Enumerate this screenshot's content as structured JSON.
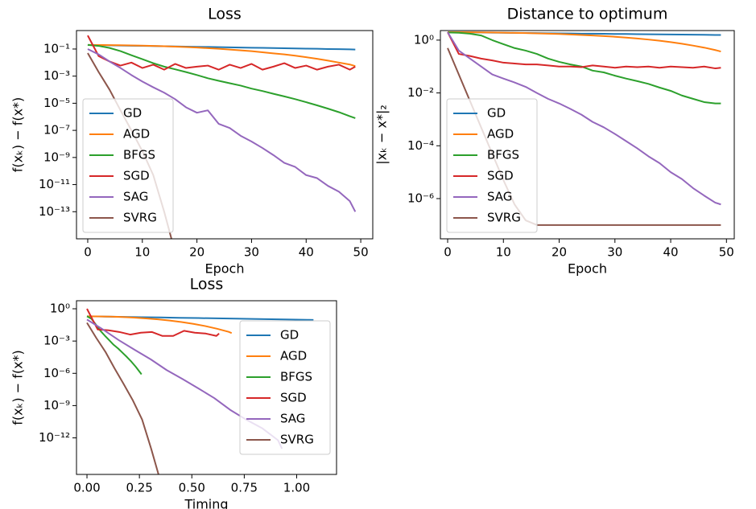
{
  "chart_data": [
    {
      "type": "line",
      "title": "Loss",
      "xlabel": "Epoch",
      "ylabel": "f(xₖ) − f(x*)",
      "ylog": true,
      "legend": "lower left",
      "xlim": [
        -2.06,
        52.2
      ],
      "xticks": [
        0,
        10,
        20,
        30,
        40,
        50
      ],
      "ylim": [
        2.3,
        1e-15
      ],
      "yticks": [
        {
          "value": 0.1,
          "label": "10⁻¹"
        },
        {
          "value": 0.001,
          "label": "10⁻³"
        },
        {
          "value": 1e-05,
          "label": "10⁻⁵"
        },
        {
          "value": 1e-07,
          "label": "10⁻⁷"
        },
        {
          "value": 1e-09,
          "label": "10⁻⁹"
        },
        {
          "value": 1e-11,
          "label": "10⁻¹¹"
        },
        {
          "value": 1e-13,
          "label": "10⁻¹³"
        }
      ],
      "x": [
        0,
        2,
        4,
        6,
        8,
        10,
        12,
        14,
        16,
        18,
        20,
        22,
        24,
        26,
        28,
        30,
        32,
        34,
        36,
        38,
        40,
        42,
        44,
        46,
        48,
        49
      ],
      "series": [
        {
          "name": "GD",
          "color": "#1f77b4",
          "values": [
            0.2,
            0.194,
            0.188,
            0.182,
            0.176,
            0.171,
            0.166,
            0.161,
            0.156,
            0.151,
            0.146,
            0.142,
            0.137,
            0.133,
            0.129,
            0.125,
            0.121,
            0.117,
            0.114,
            0.11,
            0.107,
            0.104,
            0.1,
            0.097,
            0.094,
            0.092
          ]
        },
        {
          "name": "AGD",
          "color": "#ff7f0e",
          "values": [
            0.2,
            0.198,
            0.195,
            0.19,
            0.185,
            0.178,
            0.17,
            0.16,
            0.15,
            0.14,
            0.128,
            0.116,
            0.104,
            0.092,
            0.08,
            0.069,
            0.058,
            0.048,
            0.04,
            0.032,
            0.025,
            0.019,
            0.014,
            0.01,
            0.0072,
            0.0055
          ]
        },
        {
          "name": "BFGS",
          "color": "#2ca02c",
          "values": [
            0.2,
            0.17,
            0.12,
            0.07,
            0.035,
            0.018,
            0.009,
            0.005,
            0.0032,
            0.002,
            0.0012,
            0.0007,
            0.00045,
            0.0003,
            0.0002,
            0.00012,
            8e-05,
            5e-05,
            3.2e-05,
            2e-05,
            1.2e-05,
            7e-06,
            4e-06,
            2.2e-06,
            1.1e-06,
            8e-07
          ]
        },
        {
          "name": "SGD",
          "color": "#d62728",
          "values": [
            1.0,
            0.03,
            0.012,
            0.006,
            0.01,
            0.004,
            0.007,
            0.003,
            0.008,
            0.004,
            0.005,
            0.006,
            0.003,
            0.007,
            0.004,
            0.008,
            0.003,
            0.005,
            0.009,
            0.004,
            0.006,
            0.003,
            0.005,
            0.007,
            0.003,
            0.005
          ]
        },
        {
          "name": "SAG",
          "color": "#9467bd",
          "values": [
            0.1,
            0.04,
            0.012,
            0.004,
            0.0012,
            0.0004,
            0.00015,
            6e-05,
            2e-05,
            5e-06,
            2e-06,
            3e-06,
            3e-07,
            1.5e-07,
            4e-08,
            1.5e-08,
            5e-09,
            1.5e-09,
            4e-10,
            2e-10,
            5e-11,
            3e-11,
            8e-12,
            3e-12,
            6e-13,
            1e-13
          ]
        },
        {
          "name": "SVRG",
          "color": "#8c564b",
          "values": [
            0.05,
            0.002,
            0.0001,
            3e-06,
            1e-07,
            3e-09,
            5e-11,
            1e-13,
            1e-16,
            null,
            null,
            null,
            null,
            null,
            null,
            null,
            null,
            null,
            null,
            null,
            null,
            null,
            null,
            null,
            null,
            null
          ]
        }
      ]
    },
    {
      "type": "line",
      "title": "Distance to optimum",
      "xlabel": "Epoch",
      "ylabel": "|xₖ − x*|₂",
      "ylog": true,
      "legend": "lower left",
      "xlim": [
        -1.3,
        51.4
      ],
      "xticks": [
        0,
        10,
        20,
        30,
        40,
        50
      ],
      "ylim": [
        2.3,
        3e-08
      ],
      "yticks": [
        {
          "value": 1,
          "label": "10⁰"
        },
        {
          "value": 0.01,
          "label": "10⁻²"
        },
        {
          "value": 0.0001,
          "label": "10⁻⁴"
        },
        {
          "value": 1e-06,
          "label": "10⁻⁶"
        }
      ],
      "x": [
        0,
        2,
        4,
        6,
        8,
        10,
        12,
        14,
        16,
        18,
        20,
        22,
        24,
        26,
        28,
        30,
        32,
        34,
        36,
        38,
        40,
        42,
        44,
        46,
        48,
        49
      ],
      "series": [
        {
          "name": "GD",
          "color": "#1f77b4",
          "values": [
            2.0,
            1.98,
            1.96,
            1.94,
            1.92,
            1.9,
            1.88,
            1.86,
            1.84,
            1.82,
            1.8,
            1.78,
            1.76,
            1.75,
            1.73,
            1.71,
            1.7,
            1.68,
            1.66,
            1.65,
            1.63,
            1.62,
            1.6,
            1.59,
            1.57,
            1.56
          ]
        },
        {
          "name": "AGD",
          "color": "#ff7f0e",
          "values": [
            2.0,
            2.0,
            1.98,
            1.96,
            1.94,
            1.91,
            1.88,
            1.84,
            1.8,
            1.75,
            1.7,
            1.64,
            1.57,
            1.5,
            1.42,
            1.34,
            1.25,
            1.15,
            1.05,
            0.95,
            0.84,
            0.73,
            0.62,
            0.52,
            0.42,
            0.37
          ]
        },
        {
          "name": "BFGS",
          "color": "#2ca02c",
          "values": [
            1.95,
            1.9,
            1.75,
            1.5,
            1.0,
            0.7,
            0.5,
            0.4,
            0.3,
            0.2,
            0.15,
            0.12,
            0.1,
            0.07,
            0.06,
            0.045,
            0.035,
            0.028,
            0.022,
            0.016,
            0.012,
            0.008,
            0.006,
            0.0045,
            0.004,
            0.004
          ]
        },
        {
          "name": "SGD",
          "color": "#d62728",
          "values": [
            2.0,
            0.3,
            0.25,
            0.2,
            0.17,
            0.14,
            0.13,
            0.12,
            0.12,
            0.11,
            0.1,
            0.1,
            0.095,
            0.11,
            0.1,
            0.09,
            0.1,
            0.095,
            0.1,
            0.09,
            0.1,
            0.095,
            0.09,
            0.1,
            0.085,
            0.09
          ]
        },
        {
          "name": "SAG",
          "color": "#9467bd",
          "values": [
            2.0,
            0.4,
            0.2,
            0.1,
            0.05,
            0.035,
            0.025,
            0.017,
            0.01,
            0.006,
            0.004,
            0.0025,
            0.0015,
            0.0008,
            0.0005,
            0.00028,
            0.00015,
            8e-05,
            4e-05,
            2.2e-05,
            1e-05,
            5.5e-06,
            2.5e-06,
            1.3e-06,
            7e-07,
            6e-07
          ]
        },
        {
          "name": "SVRG",
          "color": "#8c564b",
          "values": [
            0.5,
            0.05,
            0.005,
            0.0005,
            5e-05,
            5e-06,
            6e-07,
            1.5e-07,
            1e-07,
            1e-07,
            1e-07,
            1e-07,
            1e-07,
            1e-07,
            1e-07,
            1e-07,
            1e-07,
            1e-07,
            1e-07,
            1e-07,
            1e-07,
            1e-07,
            1e-07,
            1e-07,
            1e-07,
            1e-07
          ]
        }
      ]
    },
    {
      "type": "line",
      "title": "Loss",
      "xlabel": "Timing",
      "ylabel": "f(xₖ) − f(x*)",
      "ylog": true,
      "legend": "center right",
      "xlim": [
        -0.05,
        1.19
      ],
      "xticks": [
        {
          "value": 0,
          "label": "0.00"
        },
        {
          "value": 0.25,
          "label": "0.25"
        },
        {
          "value": 0.5,
          "label": "0.50"
        },
        {
          "value": 0.75,
          "label": "0.75"
        },
        {
          "value": 1,
          "label": "1.00"
        }
      ],
      "ylim": [
        5.6,
        4e-16
      ],
      "yticks": [
        {
          "value": 1,
          "label": "10⁰"
        },
        {
          "value": 0.001,
          "label": "10⁻³"
        },
        {
          "value": 1e-06,
          "label": "10⁻⁶"
        },
        {
          "value": 1e-09,
          "label": "10⁻⁹"
        },
        {
          "value": 1e-12,
          "label": "10⁻¹²"
        }
      ],
      "series": [
        {
          "name": "GD",
          "color": "#1f77b4",
          "x": [
            0,
            0.09,
            0.18,
            0.26,
            0.35,
            0.44,
            0.53,
            0.62,
            0.71,
            0.79,
            0.88,
            0.97,
            1.06,
            1.08
          ],
          "values": [
            0.2,
            0.188,
            0.176,
            0.166,
            0.156,
            0.146,
            0.137,
            0.129,
            0.121,
            0.114,
            0.107,
            0.1,
            0.094,
            0.092
          ]
        },
        {
          "name": "AGD",
          "color": "#ff7f0e",
          "x": [
            0,
            0.056,
            0.113,
            0.169,
            0.225,
            0.282,
            0.338,
            0.394,
            0.451,
            0.507,
            0.563,
            0.62,
            0.676,
            0.69
          ],
          "values": [
            0.2,
            0.195,
            0.185,
            0.17,
            0.15,
            0.128,
            0.104,
            0.08,
            0.058,
            0.04,
            0.025,
            0.014,
            0.0072,
            0.0055
          ]
        },
        {
          "name": "BFGS",
          "color": "#2ca02c",
          "x": [
            0,
            0.021,
            0.042,
            0.064,
            0.085,
            0.106,
            0.127,
            0.149,
            0.17,
            0.191,
            0.212,
            0.233,
            0.255,
            0.26
          ],
          "values": [
            0.2,
            0.12,
            0.035,
            0.009,
            0.0032,
            0.0012,
            0.00045,
            0.0002,
            8e-05,
            3.2e-05,
            1.2e-05,
            4e-06,
            1.1e-06,
            8e-07
          ]
        },
        {
          "name": "SGD",
          "color": "#d62728",
          "x": [
            0,
            0.051,
            0.103,
            0.154,
            0.206,
            0.257,
            0.309,
            0.36,
            0.411,
            0.463,
            0.514,
            0.566,
            0.617,
            0.63
          ],
          "values": [
            1.0,
            0.012,
            0.01,
            0.007,
            0.004,
            0.006,
            0.007,
            0.003,
            0.003,
            0.009,
            0.006,
            0.005,
            0.003,
            0.005
          ]
        },
        {
          "name": "SAG",
          "color": "#9467bd",
          "x": [
            0,
            0.076,
            0.152,
            0.228,
            0.304,
            0.38,
            0.455,
            0.531,
            0.607,
            0.683,
            0.759,
            0.835,
            0.911,
            0.93
          ],
          "values": [
            0.1,
            0.012,
            0.0012,
            0.00015,
            2e-05,
            2e-06,
            3e-07,
            4e-08,
            5e-09,
            4e-10,
            5e-11,
            8e-12,
            6e-13,
            1e-13
          ]
        },
        {
          "name": "SVRG",
          "color": "#8c564b",
          "x": [
            0,
            0.044,
            0.088,
            0.131,
            0.175,
            0.219,
            0.263,
            0.306,
            0.35
          ],
          "values": [
            0.05,
            0.002,
            0.0001,
            3e-06,
            1e-07,
            3e-09,
            5e-11,
            1e-13,
            1e-16
          ]
        }
      ]
    }
  ]
}
